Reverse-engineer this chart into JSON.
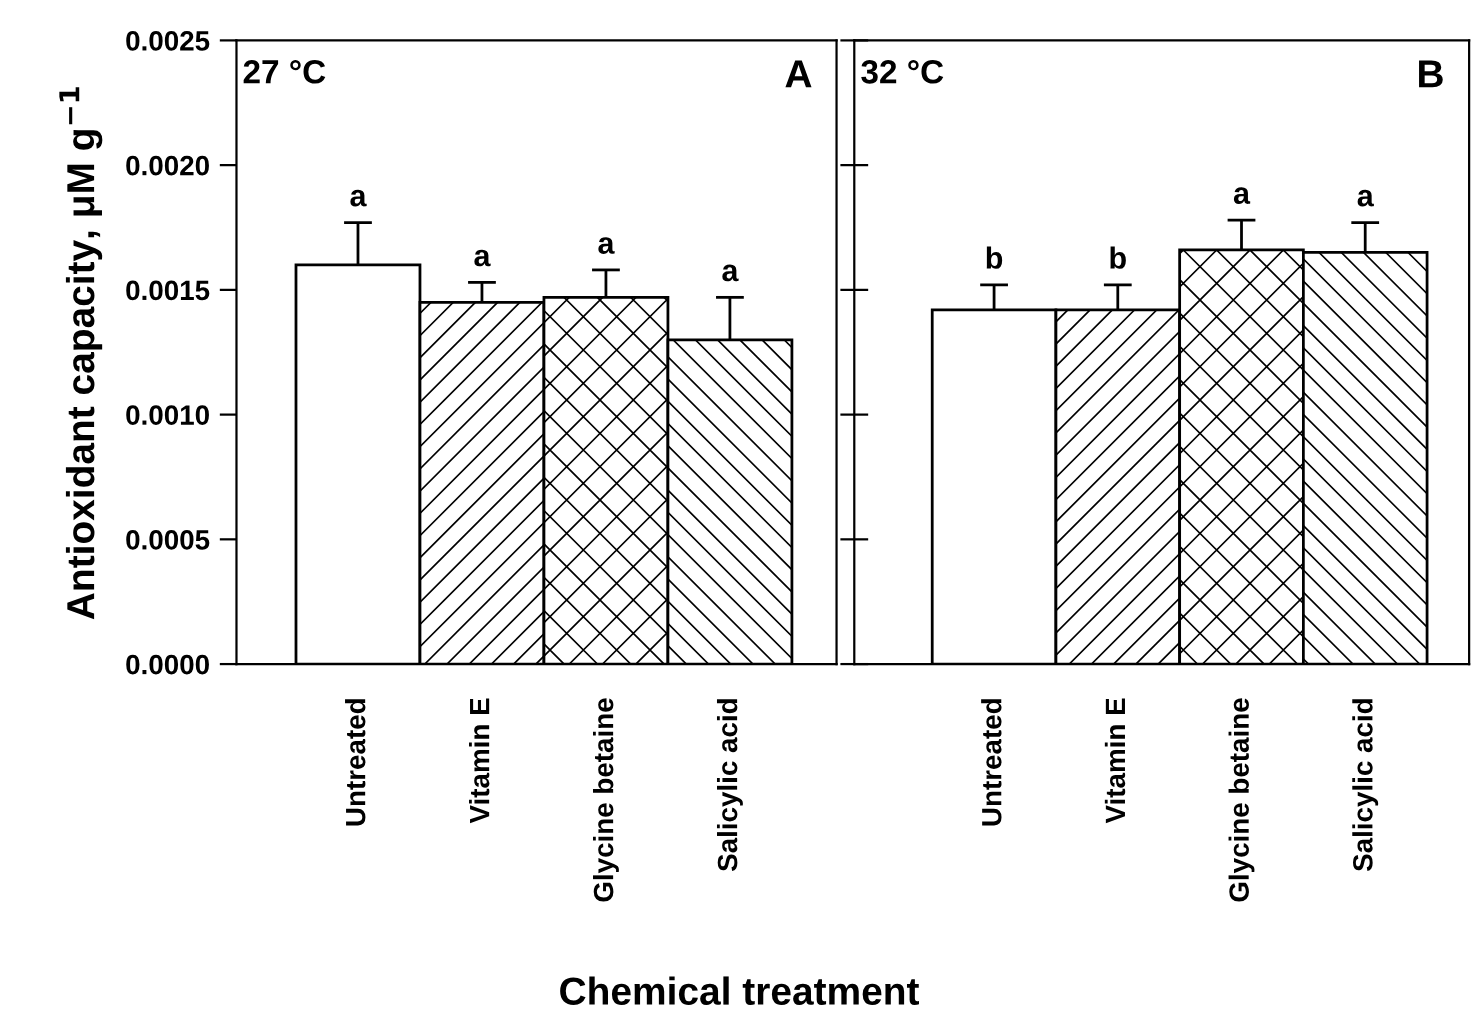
{
  "chart_data": [
    {
      "type": "bar",
      "title": "27 °C",
      "xlabel": "Chemical treatment",
      "ylabel": "Antioxidant capacity, μM g$^{−1}$",
      "categories": [
        "Untreated",
        "Vitamin E",
        "Glycine betaine",
        "Salicylic acid"
      ],
      "values": [
        0.0016,
        0.00145,
        0.00147,
        0.0013
      ],
      "errors": [
        0.00017,
        8e-05,
        0.00011,
        0.00017
      ],
      "colors": [
        "#ffffff",
        "#ffffff",
        "#ffffff",
        "#ffffff"
      ],
      "ylim": [
        0,
        0.0025
      ],
      "yticks": [
        {
          "value": 0,
          "label": "0.0000"
        },
        {
          "value": 0.0005,
          "label": "0.0005"
        },
        {
          "value": 0.001,
          "label": "0.0010"
        },
        {
          "value": 0.0015,
          "label": "0.0015"
        },
        {
          "value": 0.002,
          "label": "0.0020"
        },
        {
          "value": 0.0025,
          "label": "0.0025"
        }
      ],
      "annotations": [
        "A",
        {
          "text": "a",
          "x": "Untreated",
          "y": 0.00177
        },
        {
          "text": "a",
          "x": "Vitamin E",
          "y": 0.00153
        },
        {
          "text": "a",
          "x": "Glycine betaine",
          "y": 0.00158
        },
        {
          "text": "a",
          "x": "Salicylic acid",
          "y": 0.00147
        }
      ],
      "grid": false,
      "legend": false
    },
    {
      "type": "bar",
      "title": "32 °C",
      "categories": [
        "Untreated",
        "Vitamin E",
        "Glycine betaine",
        "Salicylic acid"
      ],
      "values": [
        0.00142,
        0.00142,
        0.00166,
        0.00165
      ],
      "errors": [
        0.0001,
        0.0001,
        0.00012,
        0.00012
      ],
      "colors": [
        "#ffffff",
        "#ffffff",
        "#ffffff",
        "#ffffff"
      ],
      "ylim": [
        0,
        0.0025
      ],
      "yticks": [
        {
          "value": 0,
          "label": null
        },
        {
          "value": 0.0005,
          "label": null
        },
        {
          "value": 0.001,
          "label": null
        },
        {
          "value": 0.0015,
          "label": null
        },
        {
          "value": 0.002,
          "label": null
        },
        {
          "value": 0.0025,
          "label": null
        }
      ],
      "tick_labels": "x",
      "annotations": [
        "B",
        {
          "text": "b",
          "x": "Untreated",
          "y": 0.00152
        },
        {
          "text": "b",
          "x": "Vitamin E",
          "y": 0.00152
        },
        {
          "text": "a",
          "x": "Glycine betaine",
          "y": 0.00178
        },
        {
          "text": "a",
          "x": "Salicylic acid",
          "y": 0.00177
        }
      ],
      "grid": false,
      "legend": false
    }
  ]
}
